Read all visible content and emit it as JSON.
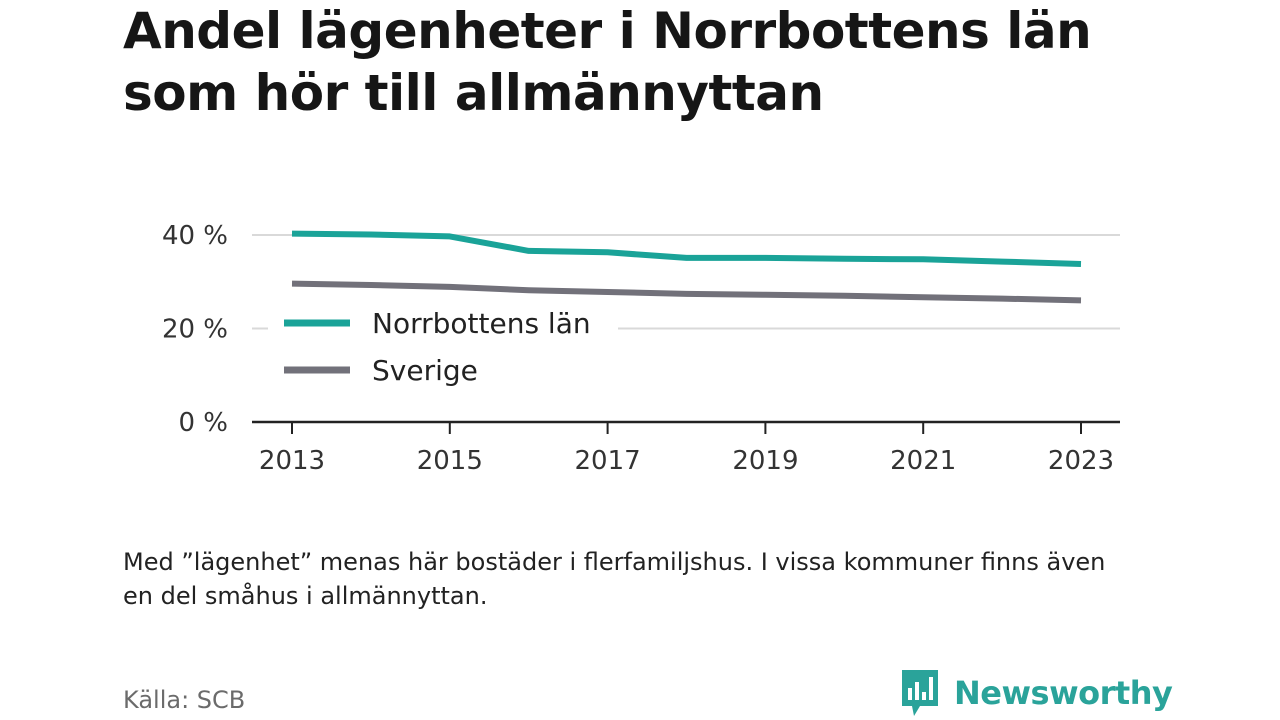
{
  "title": "Andel lägenheter i Norrbottens län som hör till allmännyttan",
  "note": "Med ”lägenhet” menas här bostäder i flerfamiljshus. I vissa kommuner finns även en del småhus i allmännyttan.",
  "source": "Källa: SCB",
  "brand": {
    "name": "Newsworthy",
    "icon": "newsworthy-logo-icon",
    "color": "#2aa39a"
  },
  "chart_data": {
    "type": "line",
    "x": [
      2013,
      2014,
      2015,
      2016,
      2017,
      2018,
      2019,
      2020,
      2021,
      2022,
      2023
    ],
    "x_ticks": [
      "2013",
      "2015",
      "2017",
      "2019",
      "2021",
      "2023"
    ],
    "y_ticks": [
      "0 %",
      "20 %",
      "40 %"
    ],
    "ylim": [
      0,
      40
    ],
    "grid": true,
    "legend_position": "inside-left",
    "series": [
      {
        "name": "Norrbottens län",
        "color": "#1aa398",
        "values": [
          40.3,
          40.1,
          39.7,
          36.6,
          36.3,
          35.1,
          35.1,
          34.9,
          34.8,
          34.3,
          33.8
        ]
      },
      {
        "name": "Sverige",
        "color": "#72717a",
        "values": [
          29.6,
          29.3,
          28.9,
          28.2,
          27.8,
          27.4,
          27.2,
          27.0,
          26.7,
          26.4,
          26.0
        ]
      }
    ]
  }
}
